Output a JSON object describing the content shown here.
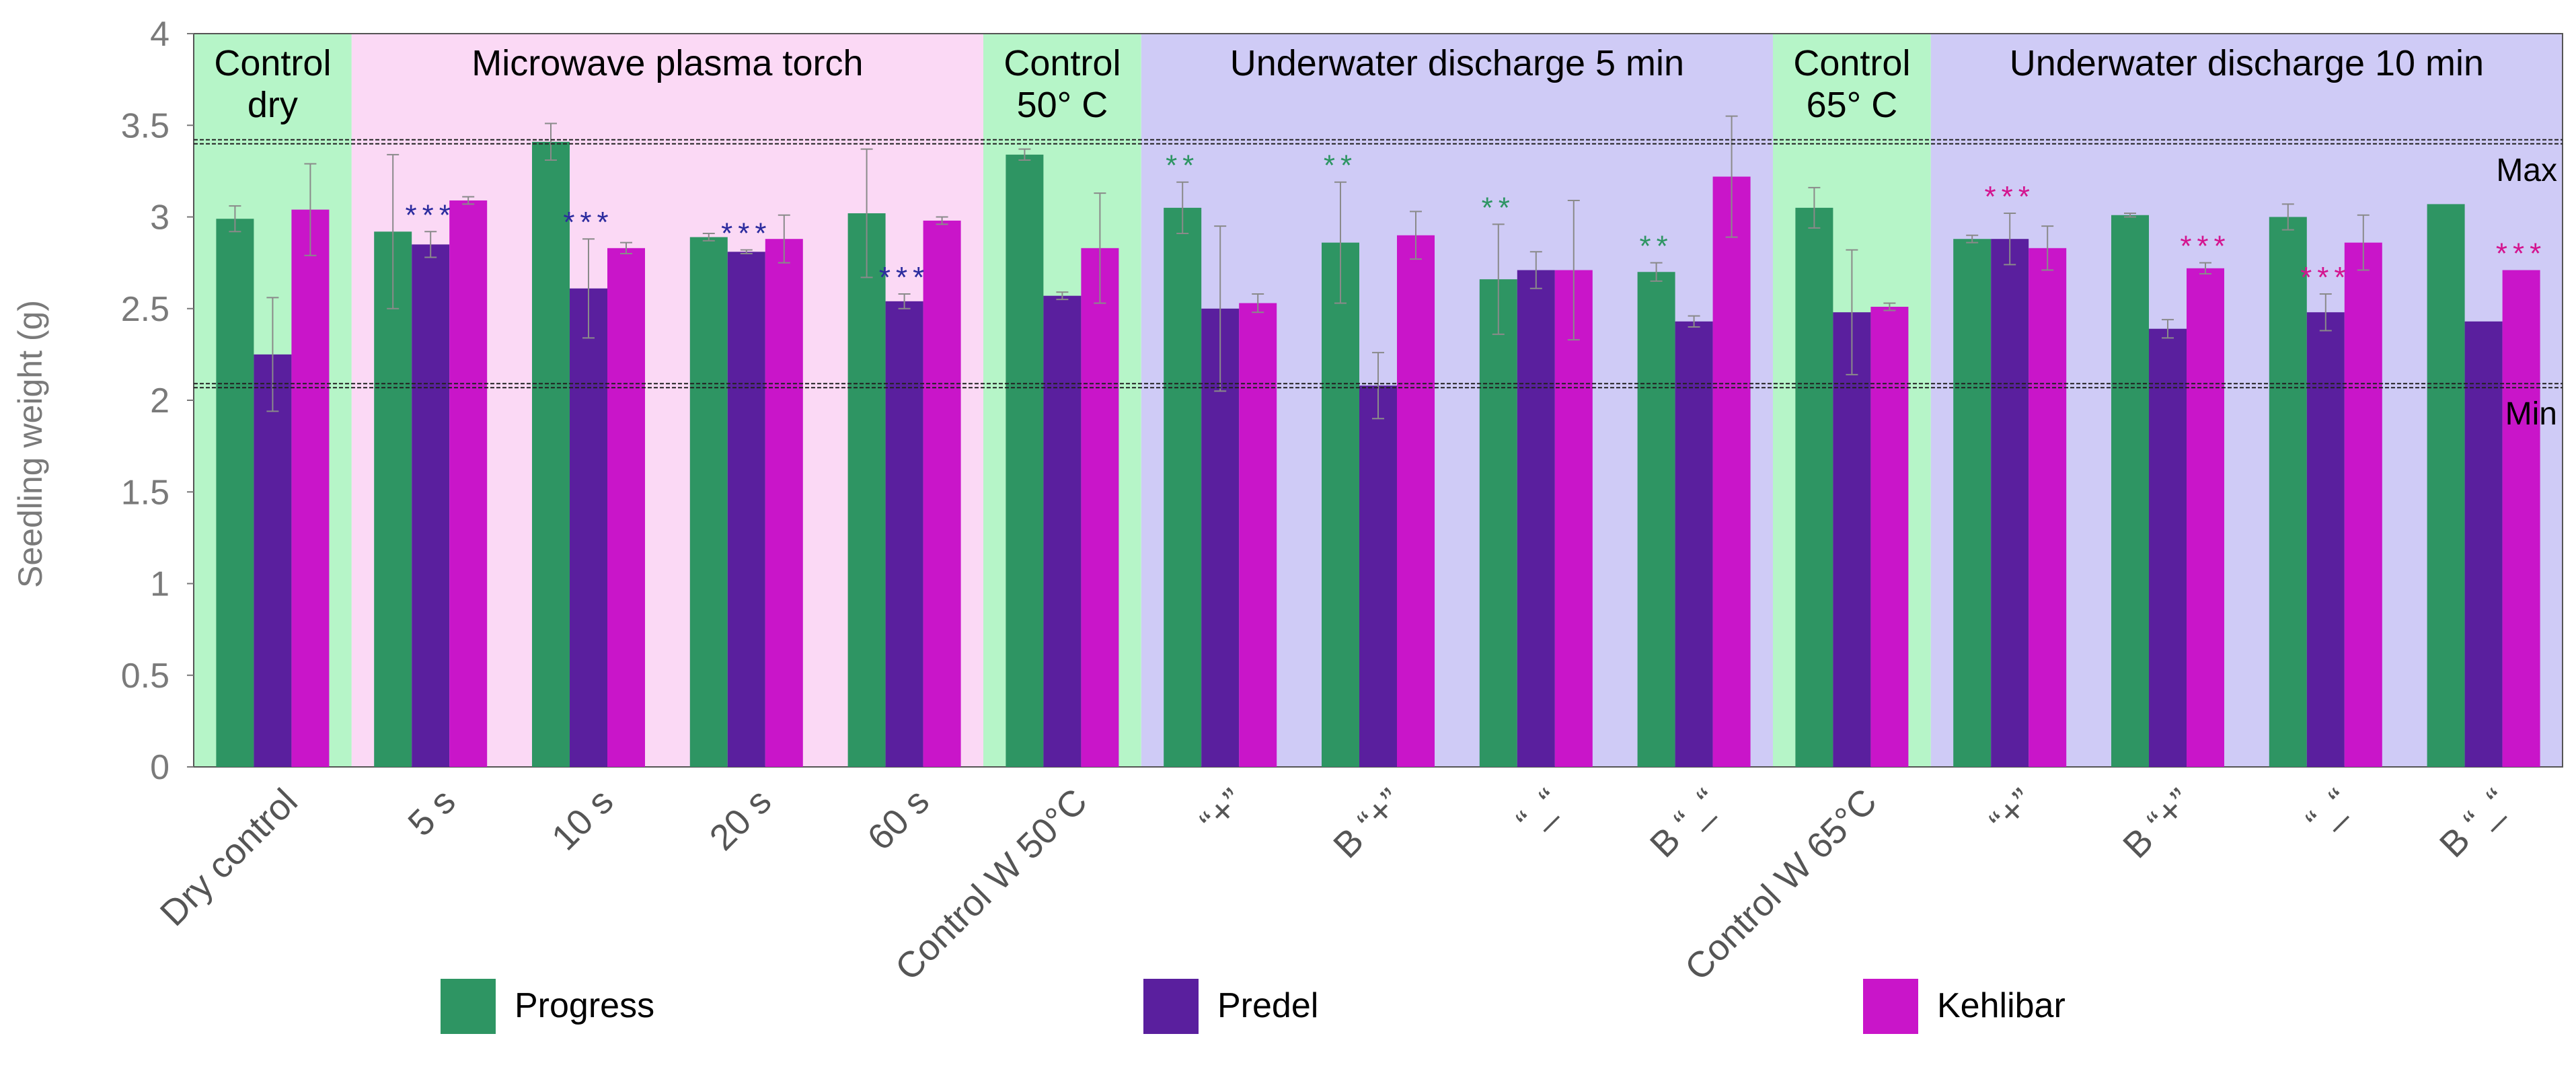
{
  "chart_data": {
    "type": "bar",
    "ylabel": "Seedling weight (g)",
    "ylim": [
      0,
      4
    ],
    "yticks": [
      "0",
      "0.5",
      "1",
      "1.5",
      "2",
      "2.5",
      "3",
      "3.5",
      "4"
    ],
    "categories": [
      "Dry control",
      "5 s",
      "10 s",
      "20 s",
      "60 s",
      "Control W 50°C",
      "“+”",
      "B “+”",
      "“_“",
      "B “_“",
      "Control W 65°C",
      "“+”",
      "B “+”",
      "“_“",
      "B “_“"
    ],
    "series": [
      {
        "name": "Progress",
        "color": "#2e9563",
        "values": [
          2.99,
          2.92,
          3.41,
          2.89,
          3.02,
          3.34,
          3.05,
          2.86,
          2.66,
          2.7,
          3.05,
          2.88,
          3.01,
          3.0,
          3.07
        ],
        "errors": [
          0.07,
          0.42,
          0.1,
          0.02,
          0.35,
          0.03,
          0.14,
          0.33,
          0.3,
          0.05,
          0.11,
          0.02,
          0.01,
          0.07,
          0.0
        ]
      },
      {
        "name": "Predel",
        "color": "#5a1f9e",
        "values": [
          2.25,
          2.85,
          2.61,
          2.81,
          2.54,
          2.57,
          2.5,
          2.08,
          2.71,
          2.43,
          2.48,
          2.88,
          2.39,
          2.48,
          2.43
        ],
        "errors": [
          0.31,
          0.07,
          0.27,
          0.01,
          0.04,
          0.02,
          0.45,
          0.18,
          0.1,
          0.03,
          0.34,
          0.14,
          0.05,
          0.1,
          0.0
        ]
      },
      {
        "name": "Kehlibar",
        "color": "#c915c9",
        "values": [
          3.04,
          3.09,
          2.83,
          2.88,
          2.98,
          2.83,
          2.53,
          2.9,
          2.71,
          3.22,
          2.51,
          2.83,
          2.72,
          2.86,
          2.71
        ],
        "errors": [
          0.25,
          0.02,
          0.03,
          0.13,
          0.02,
          0.3,
          0.05,
          0.13,
          0.38,
          0.33,
          0.02,
          0.12,
          0.03,
          0.15,
          0.0
        ]
      }
    ],
    "groups": [
      {
        "label": "Control\ndry",
        "start": 0,
        "end": 0,
        "color": "#b6f5c8"
      },
      {
        "label": "Microwave plasma torch",
        "start": 1,
        "end": 4,
        "color": "#fbd9f5"
      },
      {
        "label": "Control\n50° C",
        "start": 5,
        "end": 5,
        "color": "#b6f5c8"
      },
      {
        "label": "Underwater discharge 5 min",
        "start": 6,
        "end": 9,
        "color": "#cfcbf6"
      },
      {
        "label": "Control\n65° C",
        "start": 10,
        "end": 10,
        "color": "#b6f5c8"
      },
      {
        "label": "Underwater discharge 10 min",
        "start": 11,
        "end": 14,
        "color": "#cfcbf6"
      }
    ],
    "reference_lines": [
      {
        "label": "Max",
        "value": 3.41
      },
      {
        "label": "Min",
        "value": 2.08
      }
    ],
    "annotations": [
      {
        "text": "***",
        "category": 1,
        "series": 1,
        "color": "#2b2b9e"
      },
      {
        "text": "***",
        "category": 2,
        "series": 1,
        "color": "#2b2b9e"
      },
      {
        "text": "***",
        "category": 3,
        "series": 1,
        "color": "#2b2b9e"
      },
      {
        "text": "***",
        "category": 4,
        "series": 1,
        "color": "#2b2b9e"
      },
      {
        "text": "**",
        "category": 6,
        "series": 0,
        "color": "#2e9563"
      },
      {
        "text": "**",
        "category": 7,
        "series": 0,
        "color": "#2e9563"
      },
      {
        "text": "**",
        "category": 8,
        "series": 0,
        "color": "#2e9563"
      },
      {
        "text": "**",
        "category": 9,
        "series": 0,
        "color": "#2e9563"
      },
      {
        "text": "***",
        "category": 11,
        "series": 1,
        "color": "#d4148f"
      },
      {
        "text": "***",
        "category": 12,
        "series": 2,
        "color": "#d4148f"
      },
      {
        "text": "***",
        "category": 13,
        "series": 1,
        "color": "#d4148f"
      },
      {
        "text": "***",
        "category": 14,
        "series": 2,
        "color": "#d4148f"
      }
    ],
    "legend_position": "bottom"
  }
}
